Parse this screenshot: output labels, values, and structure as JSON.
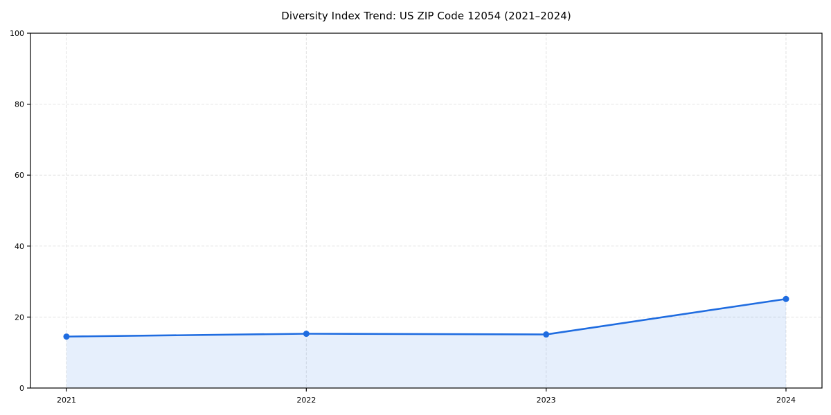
{
  "title": "Diversity Index Trend: US ZIP Code 12054 (2021–2024)",
  "chart_data": {
    "type": "line",
    "title": "Diversity Index Trend: US ZIP Code 12054 (2021–2024)",
    "x": [
      2021,
      2022,
      2023,
      2024
    ],
    "xticklabels": [
      "2021",
      "2022",
      "2023",
      "2024"
    ],
    "series": [
      {
        "name": "Diversity Index",
        "values": [
          14.5,
          15.3,
          15.1,
          25.1
        ]
      }
    ],
    "xlabel": "",
    "ylabel": "",
    "ylim": [
      0,
      100
    ],
    "yticks": [
      0,
      20,
      40,
      60,
      80,
      100
    ],
    "grid": true,
    "grid_style": "dashed",
    "legend_position": "none",
    "area_fill": true,
    "marker": "circle",
    "colors": {
      "line": "#1f6ce0",
      "marker": "#1f6ce0",
      "fill": "#1f6ce0",
      "fill_opacity": 0.11,
      "grid": "#e2e2e2",
      "spine": "#000000",
      "tick_text": "#000000",
      "background": "#ffffff"
    }
  }
}
